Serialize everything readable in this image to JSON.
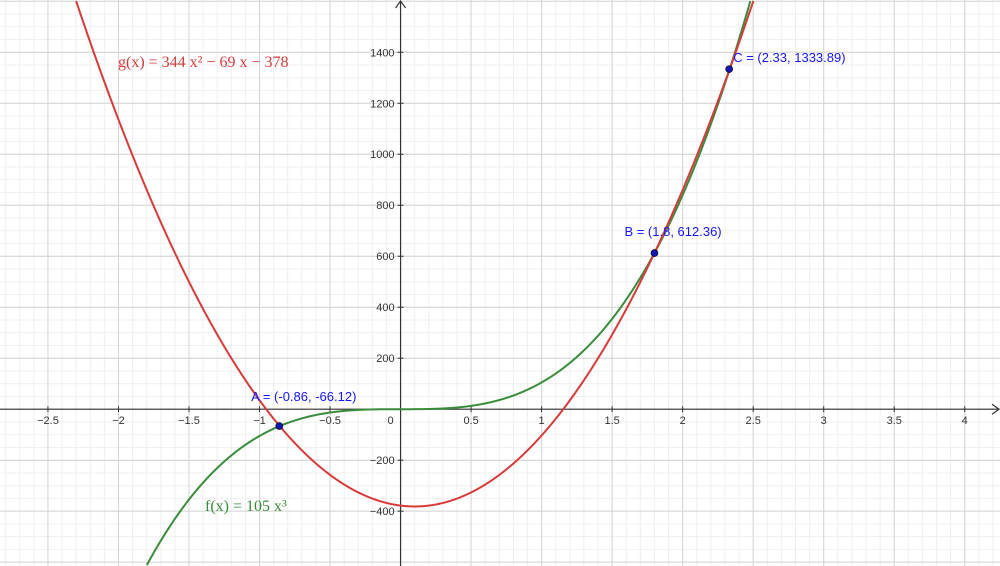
{
  "chart_data": {
    "type": "line",
    "xlim": [
      -2.84,
      4.25
    ],
    "ylim": [
      -615,
      1605
    ],
    "grid": true,
    "x_ticks": [
      -2.5,
      -2,
      -1.5,
      -1,
      -0.5,
      0,
      0.5,
      1,
      1.5,
      2,
      2.5,
      3,
      3.5,
      4
    ],
    "x_tick_labels": [
      "−2.5",
      "−2",
      "−1.5",
      "−1",
      "−0.5",
      "0",
      "0.5",
      "1",
      "1.5",
      "2",
      "2.5",
      "3",
      "3.5",
      "4"
    ],
    "y_ticks": [
      -400,
      -200,
      200,
      400,
      600,
      800,
      1000,
      1200,
      1400
    ],
    "y_tick_labels": [
      "−400",
      "−200",
      "200",
      "400",
      "600",
      "800",
      "1000",
      "1200",
      "1400"
    ],
    "series": [
      {
        "name": "f",
        "label": "f(x)  =  105 x³",
        "coefficients": [
          105,
          0,
          0,
          0
        ],
        "color": "#388c3a"
      },
      {
        "name": "g",
        "label": "g(x)  =  344 x² − 69 x − 378",
        "coefficients": [
          344,
          -69,
          -378
        ],
        "color": "#d83a3a"
      }
    ],
    "points": [
      {
        "name": "A",
        "x": -0.86,
        "y": -66.12,
        "label": "A = (-0.86, -66.12)"
      },
      {
        "name": "B",
        "x": 1.8,
        "y": 612.36,
        "label": "B = (1.8, 612.36)"
      },
      {
        "name": "C",
        "x": 2.33,
        "y": 1333.89,
        "label": "C = (2.33, 1333.89)"
      }
    ],
    "point_color": "#1515b0",
    "label_color": "#1515ff"
  }
}
